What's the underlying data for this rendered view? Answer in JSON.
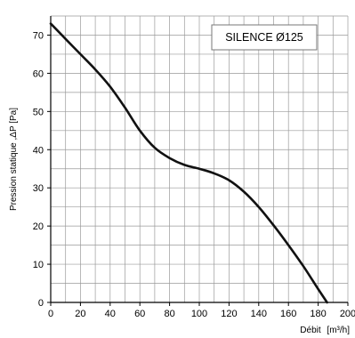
{
  "chart_data": {
    "type": "line",
    "title": "",
    "xlabel_main": "Débit",
    "xlabel_unit": "[m³/h]",
    "ylabel": "Pression statique ,ΔP [Pa]",
    "xlim": [
      0,
      200
    ],
    "ylim": [
      0,
      75
    ],
    "x_ticks": [
      "0",
      "20",
      "40",
      "60",
      "80",
      "100",
      "120",
      "140",
      "160",
      "180",
      "200"
    ],
    "y_ticks": [
      "0",
      "10",
      "20",
      "30",
      "40",
      "50",
      "60",
      "70"
    ],
    "grid": true,
    "legend_position": "top-right",
    "series": [
      {
        "name": "SILENCE Ø125",
        "color": "#111111",
        "x": [
          0,
          10,
          20,
          30,
          40,
          50,
          60,
          70,
          80,
          90,
          100,
          110,
          120,
          130,
          140,
          150,
          160,
          170,
          180,
          186
        ],
        "y": [
          73,
          69,
          65,
          61,
          56.5,
          51,
          45,
          40.5,
          37.8,
          36,
          35,
          33.8,
          32,
          29,
          25,
          20.2,
          15,
          9.5,
          3.5,
          0
        ]
      }
    ]
  }
}
